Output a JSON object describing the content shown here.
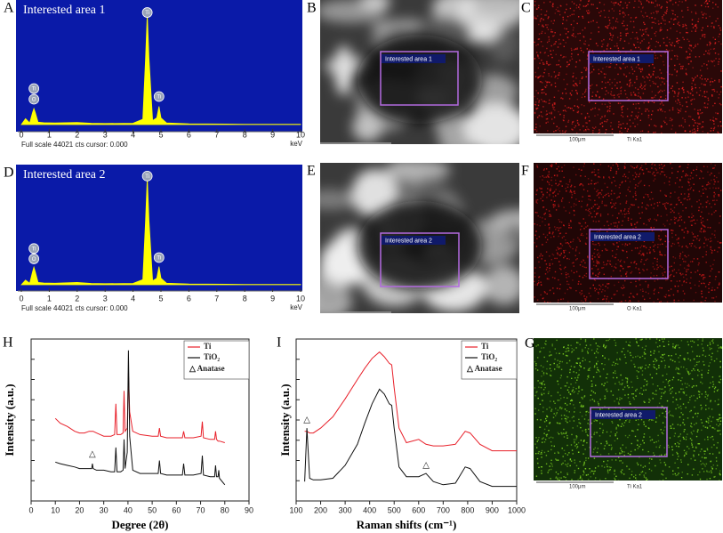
{
  "chart_data": [
    {
      "type": "area",
      "panel": "A",
      "title": "Interested area 1",
      "xlabel": "keV",
      "footer": "Full scale 44021 cts cursor: 0.000",
      "color": "#ffff00",
      "xlim": [
        0,
        10
      ],
      "xticks": [
        0,
        1,
        2,
        3,
        4,
        5,
        6,
        7,
        8,
        9,
        10
      ],
      "ylim": [
        0,
        44021
      ],
      "x": [
        0,
        0.15,
        0.3,
        0.4,
        0.45,
        0.5,
        0.6,
        0.8,
        1.2,
        2,
        2.5,
        3,
        4,
        4.35,
        4.45,
        4.51,
        4.57,
        4.7,
        4.85,
        4.93,
        5.0,
        5.2,
        6,
        8,
        10
      ],
      "values": [
        0,
        2200,
        600,
        4500,
        6000,
        4500,
        900,
        700,
        600,
        800,
        500,
        400,
        500,
        2000,
        25000,
        41500,
        25000,
        1500,
        2500,
        6800,
        2500,
        600,
        300,
        150,
        100
      ],
      "annotations": [
        {
          "text": "Ti",
          "x": 0.45,
          "y": 13500
        },
        {
          "text": "O",
          "x": 0.45,
          "y": 9500
        },
        {
          "text": "Ti",
          "x": 4.51,
          "y": 42000
        },
        {
          "text": "Ti",
          "x": 4.93,
          "y": 10500
        }
      ]
    },
    {
      "type": "area",
      "panel": "D",
      "title": "Interested area 2",
      "xlabel": "keV",
      "footer": "Full scale 44021 cts cursor: 0.000",
      "color": "#ffff00",
      "xlim": [
        0,
        10
      ],
      "xticks": [
        0,
        1,
        2,
        3,
        4,
        5,
        6,
        7,
        8,
        9,
        10
      ],
      "ylim": [
        0,
        44021
      ],
      "x": [
        0,
        0.15,
        0.3,
        0.4,
        0.45,
        0.5,
        0.6,
        0.8,
        1.2,
        2,
        2.5,
        3,
        4,
        4.35,
        4.45,
        4.51,
        4.57,
        4.7,
        4.85,
        4.93,
        5.0,
        5.2,
        6,
        8,
        10
      ],
      "values": [
        0,
        1800,
        600,
        5000,
        6800,
        5000,
        900,
        700,
        600,
        900,
        500,
        400,
        500,
        2000,
        25000,
        41500,
        25000,
        1500,
        2500,
        7000,
        2500,
        600,
        300,
        150,
        100
      ],
      "annotations": [
        {
          "text": "Ti",
          "x": 0.45,
          "y": 14000
        },
        {
          "text": "O",
          "x": 0.45,
          "y": 10000
        },
        {
          "text": "Ti",
          "x": 4.51,
          "y": 42000
        },
        {
          "text": "Ti",
          "x": 4.93,
          "y": 10500
        }
      ]
    },
    {
      "type": "line",
      "panel": "H",
      "xlabel": "Degree (2θ)",
      "ylabel": "Intensity (a.u.)",
      "xlim": [
        0,
        90
      ],
      "xticks": [
        0,
        10,
        20,
        30,
        40,
        50,
        60,
        70,
        80,
        90
      ],
      "ylim": [
        0,
        100
      ],
      "x": [
        10,
        12,
        15,
        18,
        20,
        22,
        24,
        25,
        25.3,
        25.6,
        27,
        30,
        33,
        34.5,
        35,
        35.5,
        37,
        38,
        38.4,
        38.8,
        39.7,
        40.2,
        40.7,
        42,
        45,
        50,
        52.5,
        53,
        53.5,
        56,
        60,
        62.5,
        63,
        63.5,
        67,
        70.2,
        70.7,
        71.2,
        74,
        75.8,
        76.2,
        76.6,
        77.2,
        77.5,
        77.8,
        80
      ],
      "series": [
        {
          "name": "Ti",
          "color": "#e8202a",
          "values": [
            51,
            48,
            46,
            43,
            42,
            42,
            43,
            43,
            43,
            43,
            42,
            40,
            40,
            41,
            60,
            41,
            41,
            42,
            68,
            43,
            45,
            79,
            55,
            43,
            41,
            40,
            40,
            45,
            40,
            39,
            39,
            39,
            43,
            39,
            39,
            40,
            49,
            39,
            38,
            38,
            43,
            38,
            37,
            37,
            37,
            36
          ]
        },
        {
          "name": "TiO₂",
          "color": "#111111",
          "values": [
            24,
            23,
            22,
            21,
            20,
            20,
            20,
            20,
            23,
            20,
            19,
            19,
            18,
            18,
            33,
            18,
            18,
            19,
            38,
            20,
            30,
            93,
            40,
            19,
            17,
            17,
            17,
            25,
            17,
            16,
            16,
            16,
            23,
            16,
            16,
            17,
            28,
            16,
            15,
            15,
            22,
            15,
            15,
            19,
            14,
            10
          ]
        }
      ],
      "legend": "upper right",
      "legend_extra": "△ Anatase",
      "annotations": [
        {
          "text": "△",
          "x": 25.3,
          "y": 29
        }
      ]
    },
    {
      "type": "line",
      "panel": "I",
      "xlabel": "Raman shifts (cm⁻¹)",
      "ylabel": "Intensity (a.u.)",
      "xlim": [
        100,
        1000
      ],
      "xticks": [
        100,
        200,
        300,
        400,
        500,
        600,
        700,
        800,
        900,
        1000
      ],
      "ylim": [
        0,
        100
      ],
      "x": [
        135,
        144,
        155,
        170,
        200,
        250,
        300,
        350,
        380,
        410,
        440,
        460,
        480,
        490,
        500,
        520,
        550,
        600,
        630,
        660,
        700,
        750,
        790,
        810,
        850,
        900,
        950,
        1000
      ],
      "series": [
        {
          "name": "Ti",
          "color": "#e8202a",
          "values": [
            43,
            43,
            42,
            42,
            45,
            52,
            63,
            75,
            82,
            88,
            92,
            89,
            85,
            84,
            70,
            45,
            36,
            38,
            35,
            34,
            34,
            35,
            43,
            42,
            35,
            31,
            31,
            31
          ]
        },
        {
          "name": "TiO₂",
          "color": "#111111",
          "values": [
            12,
            45,
            14,
            13,
            13,
            14,
            22,
            35,
            48,
            60,
            69,
            66,
            60,
            59,
            45,
            21,
            15,
            15,
            17,
            12,
            10,
            11,
            21,
            20,
            12,
            9,
            9,
            9
          ]
        }
      ],
      "legend": "upper right",
      "legend_extra": "△ Anatase",
      "annotations": [
        {
          "text": "△",
          "x": 144,
          "y": 50
        },
        {
          "text": "△",
          "x": 630,
          "y": 22
        }
      ]
    }
  ],
  "images": [
    {
      "panel": "B",
      "area_label": "Interested area 1"
    },
    {
      "panel": "C",
      "area_label": "Interested area 1",
      "scale": "100μm",
      "element": "Ti Ka1"
    },
    {
      "panel": "E",
      "area_label": "Interested area 2"
    },
    {
      "panel": "F",
      "area_label": "Interested area 2",
      "scale": "100μm",
      "element": "O Ka1"
    },
    {
      "panel": "G",
      "area_label": "Interested area 2",
      "scale": "100μm",
      "element": "Ti Ka1"
    }
  ]
}
